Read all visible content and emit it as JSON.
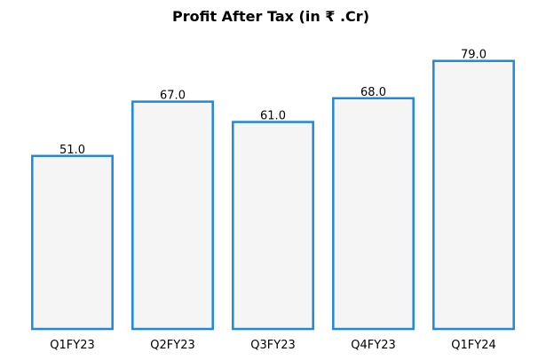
{
  "chart_data": {
    "type": "bar",
    "title": "Profit After Tax (in ₹ .Cr)",
    "xlabel": "",
    "ylabel": "",
    "categories": [
      "Q1FY23",
      "Q2FY23",
      "Q3FY23",
      "Q4FY23",
      "Q1FY24"
    ],
    "values": [
      51.0,
      67.0,
      61.0,
      68.0,
      79.0
    ],
    "data_labels": [
      "51.0",
      "67.0",
      "61.0",
      "68.0",
      "79.0"
    ],
    "ylim": [
      0,
      86.5
    ],
    "grid": false,
    "legend": "none",
    "y_axis_visible": false,
    "colors": {
      "bar_fill": "#f5f5f5",
      "bar_edge": "#1f88d9",
      "text": "#000000"
    }
  }
}
